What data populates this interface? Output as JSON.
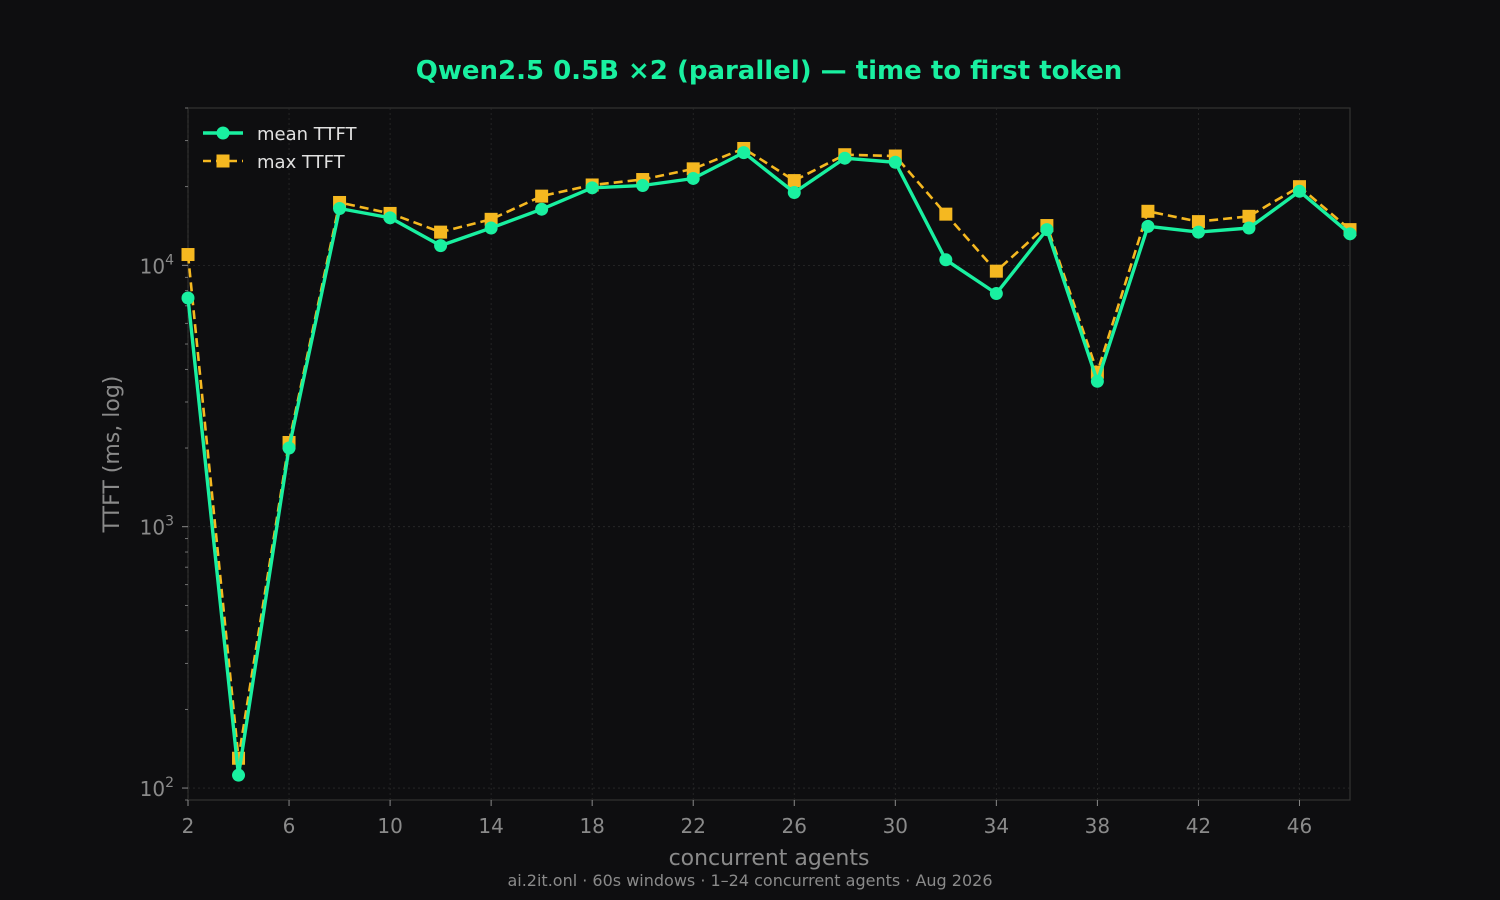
{
  "chart_data": {
    "type": "line",
    "title": "Qwen2.5 0.5B ×2 (parallel) — time to first token",
    "xlabel": "concurrent agents",
    "ylabel": "TTFT (ms, log)",
    "footer": "ai.2it.onl · 60s windows · 1–24 concurrent agents · Aug 2026",
    "yscale": "log",
    "xlim": [
      2,
      48
    ],
    "ylim": [
      90,
      40000
    ],
    "x_ticks": [
      2,
      6,
      10,
      14,
      18,
      22,
      26,
      30,
      34,
      38,
      42,
      46
    ],
    "y_ticks": [
      {
        "value": 100,
        "base": "10",
        "exp": "2"
      },
      {
        "value": 1000,
        "base": "10",
        "exp": "3"
      },
      {
        "value": 10000,
        "base": "10",
        "exp": "4"
      }
    ],
    "grid": true,
    "legend_position": "top-left",
    "x": [
      2,
      4,
      6,
      8,
      10,
      12,
      14,
      16,
      18,
      20,
      22,
      24,
      26,
      28,
      30,
      32,
      34,
      36,
      38,
      40,
      42,
      44,
      46,
      48
    ],
    "series": [
      {
        "name": "mean TTFT",
        "color": "#19f0a0",
        "marker": "circle",
        "line": "solid",
        "values": [
          7500,
          112,
          2000,
          16500,
          15200,
          11900,
          13900,
          16400,
          19800,
          20200,
          21500,
          27000,
          19000,
          25700,
          24800,
          10500,
          7800,
          13700,
          3600,
          14100,
          13400,
          13900,
          19200,
          13200
        ]
      },
      {
        "name": "max TTFT",
        "color": "#f5b820",
        "marker": "square",
        "line": "dashed",
        "values": [
          11000,
          130,
          2100,
          17400,
          15800,
          13400,
          15000,
          18400,
          20300,
          21300,
          23400,
          28000,
          21100,
          26500,
          26200,
          15700,
          9500,
          14200,
          3900,
          16100,
          14700,
          15400,
          20000,
          13700
        ]
      }
    ]
  }
}
